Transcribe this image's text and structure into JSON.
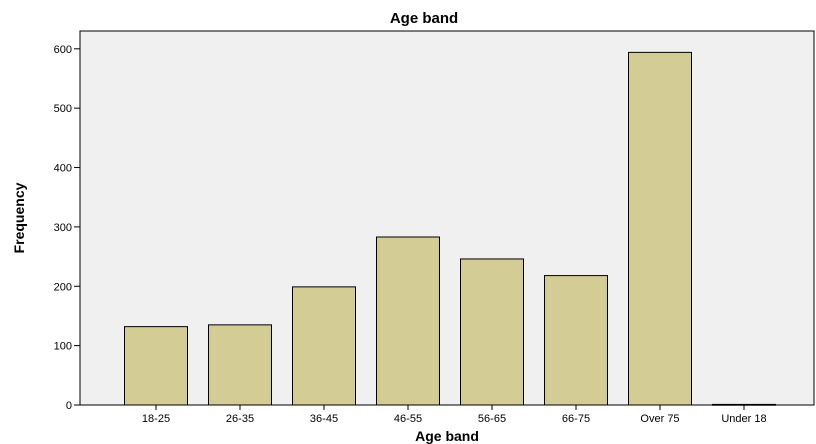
{
  "chart_data": {
    "type": "bar",
    "title": "Age band",
    "xlabel": "Age band",
    "ylabel": "Frequency",
    "categories": [
      "18-25",
      "26-35",
      "36-45",
      "46-55",
      "56-65",
      "66-75",
      "Over 75",
      "Under 18"
    ],
    "values": [
      132,
      135,
      199,
      283,
      246,
      218,
      594,
      1
    ],
    "ylim": [
      0,
      630
    ],
    "yticks": [
      0,
      100,
      200,
      300,
      400,
      500,
      600
    ],
    "grid": false,
    "legend": "none",
    "colors": {
      "bar_fill": "#d3cc95",
      "bar_stroke": "#000000",
      "plot_background": "#f0f0f0",
      "axis": "#000000"
    }
  }
}
